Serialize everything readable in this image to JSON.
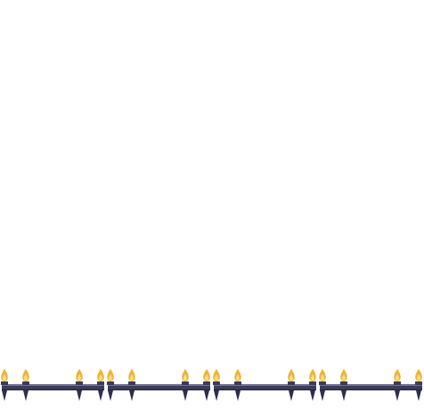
{
  "scene": {
    "background_color": "#ffffff",
    "sprite_set": "candle-fence",
    "colors": {
      "rail": "#3b3b5c",
      "rail_highlight": "#6f6f94",
      "rail_shadow": "#24243a",
      "spike": "#2f2f4a",
      "flame_outer": "#f2b233",
      "flame_inner": "#fde58a"
    },
    "segments": [
      {
        "id": "fence-segment-1",
        "candles": 4
      },
      {
        "id": "fence-segment-2",
        "candles": 4
      },
      {
        "id": "fence-segment-3",
        "candles": 4
      },
      {
        "id": "fence-segment-4",
        "candles": 4
      }
    ]
  }
}
